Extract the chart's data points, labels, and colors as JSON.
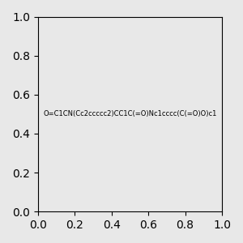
{
  "smiles": "O=C1CN(Cc2ccccc2)CC1C(=O)Nc1cccc(C(=O)O)c1",
  "image_size": 300,
  "background_color": "#e8e8e8",
  "title": ""
}
